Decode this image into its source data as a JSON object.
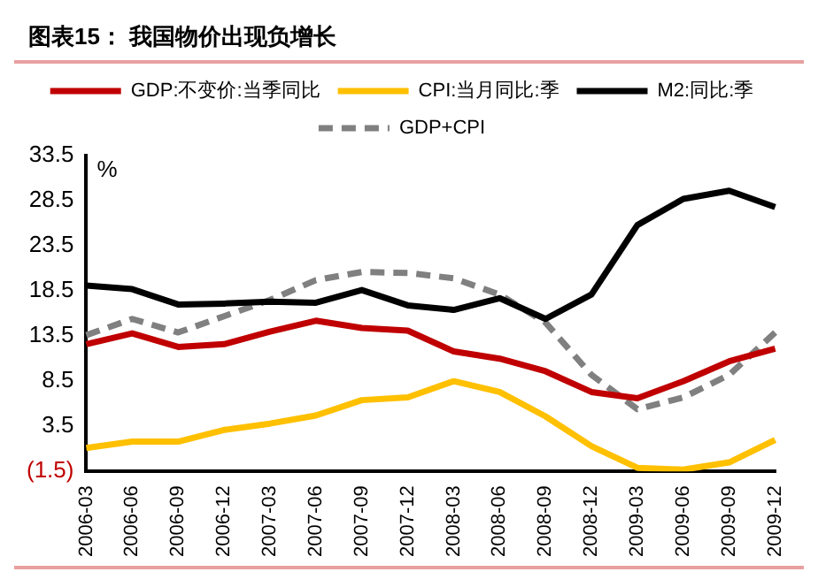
{
  "chart_data": {
    "type": "line",
    "title": "图表15：  我国物价出现负增长",
    "categories": [
      "2006-03",
      "2006-06",
      "2006-09",
      "2006-12",
      "2007-03",
      "2007-06",
      "2007-09",
      "2007-12",
      "2008-03",
      "2008-06",
      "2008-09",
      "2008-12",
      "2009-03",
      "2009-06",
      "2009-09",
      "2009-12"
    ],
    "series": [
      {
        "name": "GDP:不变价:当季同比",
        "color": "#c00000",
        "values": [
          12.6,
          13.8,
          12.3,
          12.6,
          14.0,
          15.2,
          14.4,
          14.1,
          11.8,
          11.0,
          9.6,
          7.3,
          6.6,
          8.5,
          10.7,
          12.1
        ]
      },
      {
        "name": "CPI:当月同比:季",
        "color": "#ffc000",
        "values": [
          1.1,
          1.8,
          1.8,
          3.1,
          3.8,
          4.7,
          6.4,
          6.7,
          8.5,
          7.3,
          4.6,
          1.3,
          -1.1,
          -1.3,
          -0.5,
          2.0
        ]
      },
      {
        "name": "M2:同比:季",
        "color": "#000000",
        "values": [
          19.1,
          18.7,
          17.0,
          17.1,
          17.3,
          17.2,
          18.6,
          16.9,
          16.4,
          17.7,
          15.4,
          18.1,
          25.8,
          28.7,
          29.6,
          27.8
        ]
      },
      {
        "name": "GDP+CPI",
        "color": "#808080",
        "line_style": "dashed",
        "values": [
          13.6,
          15.4,
          13.9,
          15.7,
          17.5,
          19.7,
          20.6,
          20.5,
          19.9,
          18.1,
          15.0,
          9.2,
          5.4,
          6.7,
          9.2,
          13.9
        ]
      }
    ],
    "ylim": [
      -1.5,
      33.5
    ],
    "yticks": [
      {
        "value": -1.5,
        "label": "(1.5)"
      },
      3.5,
      8.5,
      13.5,
      18.5,
      23.5,
      28.5,
      33.5
    ],
    "annotations": [
      "%"
    ],
    "legend": "top",
    "grid": false,
    "marker": "none",
    "line_style": "solid"
  }
}
